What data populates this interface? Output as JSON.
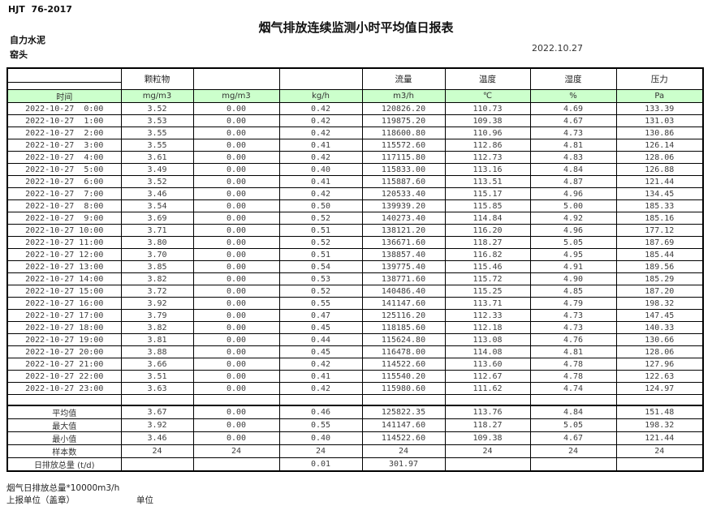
{
  "meta": {
    "standard": "HJT  76-2017",
    "title": "烟气排放连续监测小时平均值日报表",
    "company": "自力水泥",
    "station": "窑头",
    "date": "2022.10.27"
  },
  "colors": {
    "unit_row_green": "#ccffcc",
    "border": "#000000"
  },
  "table": {
    "group_headers": [
      "",
      "颗粒物",
      "",
      "",
      "流量",
      "温度",
      "湿度",
      "压力"
    ],
    "unit_row": [
      "时间",
      "mg/m3",
      "mg/m3",
      "kg/h",
      "m3/h",
      "℃",
      "%",
      "Pa"
    ],
    "rows": [
      [
        "2022-10-27  0:00",
        "3.52",
        "0.00",
        "0.42",
        "120826.20",
        "110.73",
        "4.69",
        "133.39"
      ],
      [
        "2022-10-27  1:00",
        "3.53",
        "0.00",
        "0.42",
        "119875.20",
        "109.38",
        "4.67",
        "131.03"
      ],
      [
        "2022-10-27  2:00",
        "3.55",
        "0.00",
        "0.42",
        "118600.80",
        "110.96",
        "4.73",
        "130.86"
      ],
      [
        "2022-10-27  3:00",
        "3.55",
        "0.00",
        "0.41",
        "115572.60",
        "112.86",
        "4.81",
        "126.14"
      ],
      [
        "2022-10-27  4:00",
        "3.61",
        "0.00",
        "0.42",
        "117115.80",
        "112.73",
        "4.83",
        "128.06"
      ],
      [
        "2022-10-27  5:00",
        "3.49",
        "0.00",
        "0.40",
        "115833.00",
        "113.16",
        "4.84",
        "126.88"
      ],
      [
        "2022-10-27  6:00",
        "3.52",
        "0.00",
        "0.41",
        "115887.60",
        "113.51",
        "4.87",
        "121.44"
      ],
      [
        "2022-10-27  7:00",
        "3.46",
        "0.00",
        "0.42",
        "120533.40",
        "115.17",
        "4.96",
        "134.45"
      ],
      [
        "2022-10-27  8:00",
        "3.54",
        "0.00",
        "0.50",
        "139939.20",
        "115.85",
        "5.00",
        "185.33"
      ],
      [
        "2022-10-27  9:00",
        "3.69",
        "0.00",
        "0.52",
        "140273.40",
        "114.84",
        "4.92",
        "185.16"
      ],
      [
        "2022-10-27 10:00",
        "3.71",
        "0.00",
        "0.51",
        "138121.20",
        "116.20",
        "4.96",
        "177.12"
      ],
      [
        "2022-10-27 11:00",
        "3.80",
        "0.00",
        "0.52",
        "136671.60",
        "118.27",
        "5.05",
        "187.69"
      ],
      [
        "2022-10-27 12:00",
        "3.70",
        "0.00",
        "0.51",
        "138857.40",
        "116.82",
        "4.95",
        "185.44"
      ],
      [
        "2022-10-27 13:00",
        "3.85",
        "0.00",
        "0.54",
        "139775.40",
        "115.46",
        "4.91",
        "189.56"
      ],
      [
        "2022-10-27 14:00",
        "3.82",
        "0.00",
        "0.53",
        "138771.60",
        "115.72",
        "4.90",
        "185.29"
      ],
      [
        "2022-10-27 15:00",
        "3.72",
        "0.00",
        "0.52",
        "140486.40",
        "115.25",
        "4.85",
        "187.20"
      ],
      [
        "2022-10-27 16:00",
        "3.92",
        "0.00",
        "0.55",
        "141147.60",
        "113.71",
        "4.79",
        "198.32"
      ],
      [
        "2022-10-27 17:00",
        "3.79",
        "0.00",
        "0.47",
        "125116.20",
        "112.33",
        "4.73",
        "147.45"
      ],
      [
        "2022-10-27 18:00",
        "3.82",
        "0.00",
        "0.45",
        "118185.60",
        "112.18",
        "4.73",
        "140.33"
      ],
      [
        "2022-10-27 19:00",
        "3.81",
        "0.00",
        "0.44",
        "115624.80",
        "113.08",
        "4.76",
        "130.66"
      ],
      [
        "2022-10-27 20:00",
        "3.88",
        "0.00",
        "0.45",
        "116478.00",
        "114.08",
        "4.81",
        "128.06"
      ],
      [
        "2022-10-27 21:00",
        "3.66",
        "0.00",
        "0.42",
        "114522.60",
        "113.60",
        "4.78",
        "127.96"
      ],
      [
        "2022-10-27 22:00",
        "3.51",
        "0.00",
        "0.41",
        "115540.20",
        "112.67",
        "4.78",
        "122.63"
      ],
      [
        "2022-10-27 23:00",
        "3.63",
        "0.00",
        "0.42",
        "115980.60",
        "111.62",
        "4.74",
        "124.97"
      ]
    ],
    "summary": [
      [
        "平均值",
        "3.67",
        "0.00",
        "0.46",
        "125822.35",
        "113.76",
        "4.84",
        "151.48"
      ],
      [
        "最大值",
        "3.92",
        "0.00",
        "0.55",
        "141147.60",
        "118.27",
        "5.05",
        "198.32"
      ],
      [
        "最小值",
        "3.46",
        "0.00",
        "0.40",
        "114522.60",
        "109.38",
        "4.67",
        "121.44"
      ],
      [
        "样本数",
        "24",
        "24",
        "24",
        "24",
        "24",
        "24",
        "24"
      ],
      [
        "日排放总量 (t/d)",
        "",
        "",
        "0.01",
        "301.97",
        "",
        "",
        ""
      ]
    ]
  },
  "footer": {
    "note": "烟气日排放总量*10000m3/h",
    "report_unit_label": "上报单位（盖章）",
    "unit_label": "单位"
  }
}
